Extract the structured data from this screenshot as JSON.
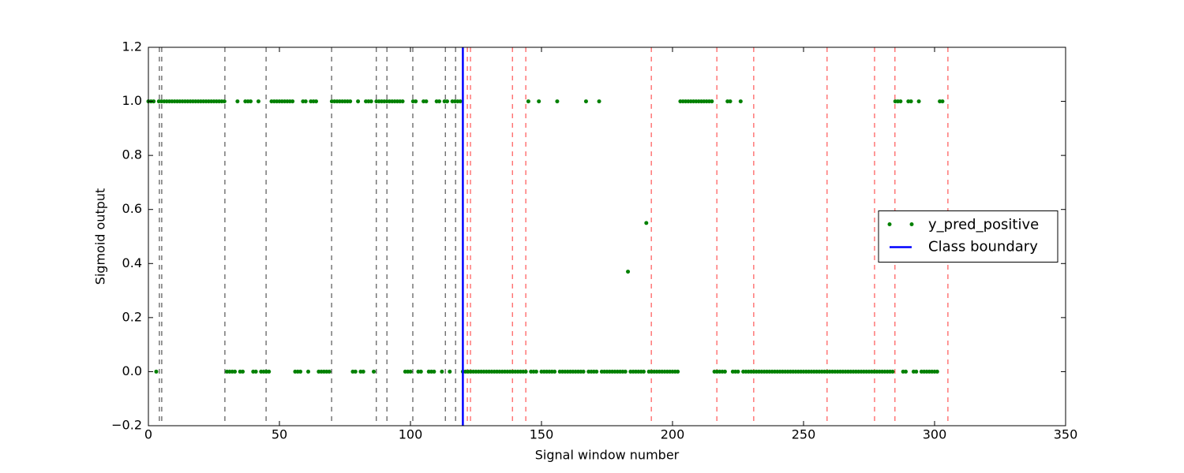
{
  "chart_data": {
    "type": "scatter",
    "xlabel": "Signal window number",
    "ylabel": "Sigmoid output",
    "xlim": [
      0,
      350
    ],
    "xticks": [
      0,
      50,
      100,
      150,
      200,
      250,
      300,
      350
    ],
    "ylim": [
      -0.2,
      1.2
    ],
    "yticks": [
      {
        "value": -0.2,
        "label": "−0.2"
      },
      {
        "value": 0,
        "label": "0.0"
      },
      0.2,
      0.4,
      0.6,
      0.8,
      {
        "value": 1,
        "label": "1.0"
      },
      1.2
    ],
    "legend": "center right",
    "series": [
      {
        "name": "y_pred_positive",
        "color": "#008000",
        "x": [
          0,
          1,
          2,
          3,
          4,
          5,
          6,
          7,
          8,
          9,
          10,
          11,
          12,
          13,
          14,
          15,
          16,
          17,
          18,
          19,
          20,
          21,
          22,
          23,
          24,
          25,
          26,
          27,
          28,
          29,
          30,
          31,
          32,
          33,
          34,
          35,
          36,
          37,
          38,
          39,
          40,
          41,
          42,
          43,
          44,
          45,
          46,
          47,
          48,
          49,
          50,
          51,
          52,
          53,
          54,
          55,
          56,
          57,
          58,
          59,
          60,
          61,
          62,
          63,
          64,
          65,
          66,
          67,
          68,
          69,
          70,
          71,
          72,
          73,
          74,
          75,
          76,
          77,
          78,
          79,
          80,
          81,
          82,
          83,
          84,
          85,
          86,
          87,
          88,
          89,
          90,
          91,
          92,
          93,
          94,
          95,
          96,
          97,
          98,
          99,
          100,
          101,
          102,
          103,
          104,
          105,
          106,
          107,
          108,
          109,
          110,
          111,
          112,
          113,
          114,
          115,
          116,
          117,
          118,
          119,
          120,
          121,
          122,
          123,
          124,
          125,
          126,
          127,
          128,
          129,
          130,
          131,
          132,
          133,
          134,
          135,
          136,
          137,
          138,
          139,
          140,
          141,
          142,
          143,
          144,
          145,
          146,
          147,
          148,
          149,
          150,
          151,
          152,
          153,
          154,
          155,
          156,
          157,
          158,
          159,
          160,
          161,
          162,
          163,
          164,
          165,
          166,
          167,
          168,
          169,
          170,
          171,
          172,
          173,
          174,
          175,
          176,
          177,
          178,
          179,
          180,
          181,
          182,
          183,
          184,
          185,
          186,
          187,
          188,
          189,
          190,
          191,
          192,
          193,
          194,
          195,
          196,
          197,
          198,
          199,
          200,
          201,
          202,
          203,
          204,
          205,
          206,
          207,
          208,
          209,
          210,
          211,
          212,
          213,
          214,
          215,
          216,
          217,
          218,
          219,
          220,
          221,
          222,
          223,
          224,
          225,
          226,
          227,
          228,
          229,
          230,
          231,
          232,
          233,
          234,
          235,
          236,
          237,
          238,
          239,
          240,
          241,
          242,
          243,
          244,
          245,
          246,
          247,
          248,
          249,
          250,
          251,
          252,
          253,
          254,
          255,
          256,
          257,
          258,
          259,
          260,
          261,
          262,
          263,
          264,
          265,
          266,
          267,
          268,
          269,
          270,
          271,
          272,
          273,
          274,
          275,
          276,
          277,
          278,
          279,
          280,
          281,
          282,
          283,
          284,
          285,
          286,
          287,
          288,
          289,
          290,
          291,
          292,
          293,
          294,
          295,
          296,
          297,
          298,
          299,
          300,
          301,
          302,
          303
        ],
        "values": [
          1,
          1,
          1,
          0,
          1,
          1,
          1,
          1,
          1,
          1,
          1,
          1,
          1,
          1,
          1,
          1,
          1,
          1,
          1,
          1,
          1,
          1,
          1,
          1,
          1,
          1,
          1,
          1,
          1,
          1,
          0,
          0,
          0,
          0,
          1,
          0,
          0,
          1,
          1,
          1,
          0,
          0,
          1,
          0,
          0,
          0,
          0,
          1,
          1,
          1,
          1,
          1,
          1,
          1,
          1,
          1,
          0,
          0,
          0,
          1,
          1,
          0,
          1,
          1,
          1,
          0,
          0,
          0,
          0,
          0,
          1,
          1,
          1,
          1,
          1,
          1,
          1,
          1,
          0,
          0,
          1,
          0,
          0,
          1,
          1,
          1,
          0,
          1,
          1,
          1,
          1,
          1,
          1,
          1,
          1,
          1,
          1,
          1,
          0,
          0,
          0,
          1,
          1,
          0,
          0,
          1,
          1,
          0,
          0,
          0,
          1,
          1,
          0,
          1,
          1,
          0,
          1,
          1,
          1,
          1,
          0,
          0,
          0,
          0,
          0,
          0,
          0,
          0,
          0,
          0,
          0,
          0,
          0,
          0,
          0,
          0,
          0,
          0,
          0,
          0,
          0,
          0,
          0,
          0,
          0,
          1,
          0,
          0,
          0,
          1,
          0,
          0,
          0,
          0,
          0,
          0,
          1,
          0,
          0,
          0,
          0,
          0,
          0,
          0,
          0,
          0,
          0,
          1,
          0,
          0,
          0,
          0,
          1,
          0,
          0,
          0,
          0,
          0,
          0,
          0,
          0,
          0,
          0,
          0.37,
          0,
          0,
          0,
          0,
          0,
          0,
          0.55,
          0,
          0,
          0,
          0,
          0,
          0,
          0,
          0,
          0,
          0,
          0,
          0,
          1,
          1,
          1,
          1,
          1,
          1,
          1,
          1,
          1,
          1,
          1,
          1,
          1,
          0,
          0,
          0,
          0,
          0,
          1,
          1,
          0,
          0,
          0,
          1,
          0,
          0,
          0,
          0,
          0,
          0,
          0,
          0,
          0,
          0,
          0,
          0,
          0,
          0,
          0,
          0,
          0,
          0,
          0,
          0,
          0,
          0,
          0,
          0,
          0,
          0,
          0,
          0,
          0,
          0,
          0,
          0,
          0,
          0,
          0,
          0,
          0,
          0,
          0,
          0,
          0,
          0,
          0,
          0,
          0,
          0,
          0,
          0,
          0,
          0,
          0,
          0,
          0,
          0,
          0,
          0,
          0,
          0,
          1,
          1,
          1,
          0,
          0,
          1,
          1,
          0,
          0,
          1,
          0,
          0,
          0,
          0,
          0,
          0,
          0,
          1,
          1
        ]
      },
      {
        "name": "Class boundary",
        "color": "#0000ff",
        "x": 120
      }
    ],
    "black_dashed_x": [
      4.2,
      5.1,
      29.2,
      44.9,
      69.9,
      87,
      91,
      100.9,
      113.3,
      117.2
    ],
    "red_dashed_x": [
      121.7,
      122.9,
      138.9,
      144,
      191.9,
      216.9,
      231,
      259,
      277.1,
      284.9,
      305.1
    ]
  }
}
